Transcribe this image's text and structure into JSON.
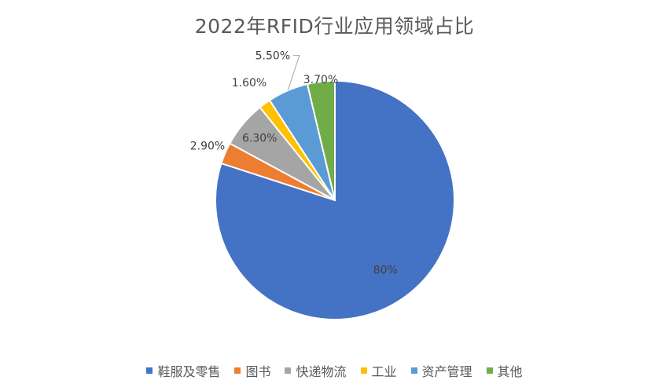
{
  "chart_data": {
    "type": "pie",
    "title": "2022年RFID行业应用领域占比",
    "categories": [
      "鞋服及零售",
      "图书",
      "快递物流",
      "工业",
      "资产管理",
      "其他"
    ],
    "values": [
      80,
      2.9,
      6.3,
      1.6,
      5.5,
      3.7
    ],
    "value_labels": [
      "80%",
      "2.90%",
      "6.30%",
      "1.60%",
      "5.50%",
      "3.70%"
    ],
    "colors": [
      "#4472C4",
      "#ED7D31",
      "#A5A5A5",
      "#FFC000",
      "#5B9BD5",
      "#70AD47"
    ],
    "start_angle": "12 o'clock",
    "direction": "clockwise",
    "legend_position": "bottom"
  }
}
